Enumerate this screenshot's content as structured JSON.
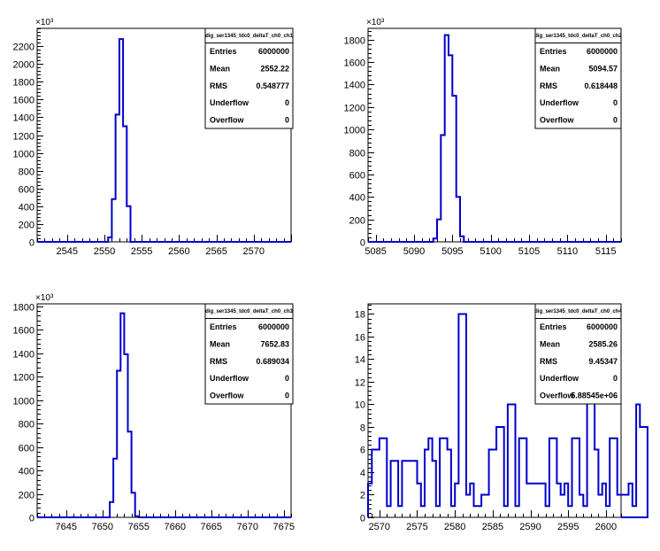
{
  "chart_data": [
    {
      "type": "histogram",
      "title": "",
      "xlim": [
        2541,
        2575
      ],
      "ylim": [
        0,
        2400
      ],
      "x_ticks": [
        2545,
        2550,
        2555,
        2560,
        2565,
        2570
      ],
      "y_ticks": [
        0,
        200,
        400,
        600,
        800,
        1000,
        1200,
        1400,
        1600,
        1800,
        2000,
        2200
      ],
      "y_multiplier": "×10³",
      "bin_edges": [
        2550.5,
        2551.0,
        2551.5,
        2552.0,
        2552.5,
        2553.0,
        2553.5,
        2554.0
      ],
      "values": [
        50,
        480,
        1430,
        2280,
        1300,
        400,
        0
      ],
      "stats": {
        "name": "dig_ser1345_tdc0_deltaT_ch0_ch1",
        "rows": [
          {
            "label": "Entries",
            "value": "6000000"
          },
          {
            "label": "Mean",
            "value": "2552.22"
          },
          {
            "label": "RMS",
            "value": "0.548777"
          },
          {
            "label": "Underflow",
            "value": "0"
          },
          {
            "label": "Overflow",
            "value": "0"
          }
        ]
      }
    },
    {
      "type": "histogram",
      "title": "",
      "xlim": [
        5084,
        5117
      ],
      "ylim": [
        0,
        1900
      ],
      "x_ticks": [
        5085,
        5090,
        5095,
        5100,
        5105,
        5110,
        5115
      ],
      "y_ticks": [
        0,
        200,
        400,
        600,
        800,
        1000,
        1200,
        1400,
        1600,
        1800
      ],
      "y_multiplier": "×10³",
      "bin_edges": [
        5092.5,
        5093.0,
        5093.5,
        5094.0,
        5094.5,
        5095.0,
        5095.5,
        5096.0,
        5096.5
      ],
      "values": [
        30,
        200,
        950,
        1840,
        1660,
        1300,
        400,
        50
      ],
      "stats": {
        "name": "dig_ser1345_tdc0_deltaT_ch0_ch2",
        "rows": [
          {
            "label": "Entries",
            "value": "6000000"
          },
          {
            "label": "Mean",
            "value": "5094.57"
          },
          {
            "label": "RMS",
            "value": "0.618448"
          },
          {
            "label": "Underflow",
            "value": "0"
          },
          {
            "label": "Overflow",
            "value": "0"
          }
        ]
      }
    },
    {
      "type": "histogram",
      "title": "",
      "xlim": [
        7641,
        7676
      ],
      "ylim": [
        0,
        1820
      ],
      "x_ticks": [
        7645,
        7650,
        7655,
        7660,
        7665,
        7670,
        7675
      ],
      "y_ticks": [
        0,
        200,
        400,
        600,
        800,
        1000,
        1200,
        1400,
        1600,
        1800
      ],
      "y_multiplier": "×10³",
      "bin_edges": [
        7651.0,
        7651.5,
        7652.0,
        7652.5,
        7653.0,
        7653.5,
        7654.0,
        7654.5,
        7655.0
      ],
      "values": [
        130,
        500,
        1250,
        1740,
        1390,
        730,
        210,
        10
      ],
      "stats": {
        "name": "dig_ser1345_tdc0_deltaT_ch0_ch3",
        "rows": [
          {
            "label": "Entries",
            "value": "6000000"
          },
          {
            "label": "Mean",
            "value": "7652.83"
          },
          {
            "label": "RMS",
            "value": "0.689034"
          },
          {
            "label": "Underflow",
            "value": "0"
          },
          {
            "label": "Overflow",
            "value": "0"
          }
        ]
      }
    },
    {
      "type": "histogram",
      "title": "",
      "xlim": [
        2568.5,
        2602.0
      ],
      "ylim": [
        0,
        18.9
      ],
      "x_ticks": [
        2570,
        2575,
        2580,
        2585,
        2590,
        2595,
        2600
      ],
      "y_ticks": [
        0,
        2,
        4,
        6,
        8,
        10,
        12,
        14,
        16,
        18
      ],
      "y_multiplier": "",
      "bin_start": 2568.5,
      "bin_width": 0.5,
      "values": [
        3,
        6,
        6,
        7,
        7,
        1,
        5,
        5,
        1,
        5,
        5,
        5,
        5,
        3,
        1,
        6,
        7,
        5,
        1,
        7,
        7,
        6,
        1,
        3,
        18,
        18,
        2,
        3,
        1,
        1,
        2,
        2,
        6,
        6,
        8,
        8,
        1,
        10,
        10,
        1,
        7,
        7,
        3,
        3,
        3,
        3,
        3,
        1,
        7,
        7,
        3,
        2,
        3,
        1,
        7,
        7,
        2,
        1,
        11,
        11,
        6,
        2,
        3,
        1,
        7,
        7,
        2,
        2,
        2,
        3,
        1,
        10,
        8,
        8
      ],
      "stats": {
        "name": "dig_ser1345_tdc0_deltaT_ch0_ch4",
        "rows": [
          {
            "label": "Entries",
            "value": "6000000"
          },
          {
            "label": "Mean",
            "value": "2585.26"
          },
          {
            "label": "RMS",
            "value": "9.45347"
          },
          {
            "label": "Underflow",
            "value": "0"
          },
          {
            "label": "Overflow",
            "value": "5.88545e+06"
          }
        ]
      }
    }
  ]
}
